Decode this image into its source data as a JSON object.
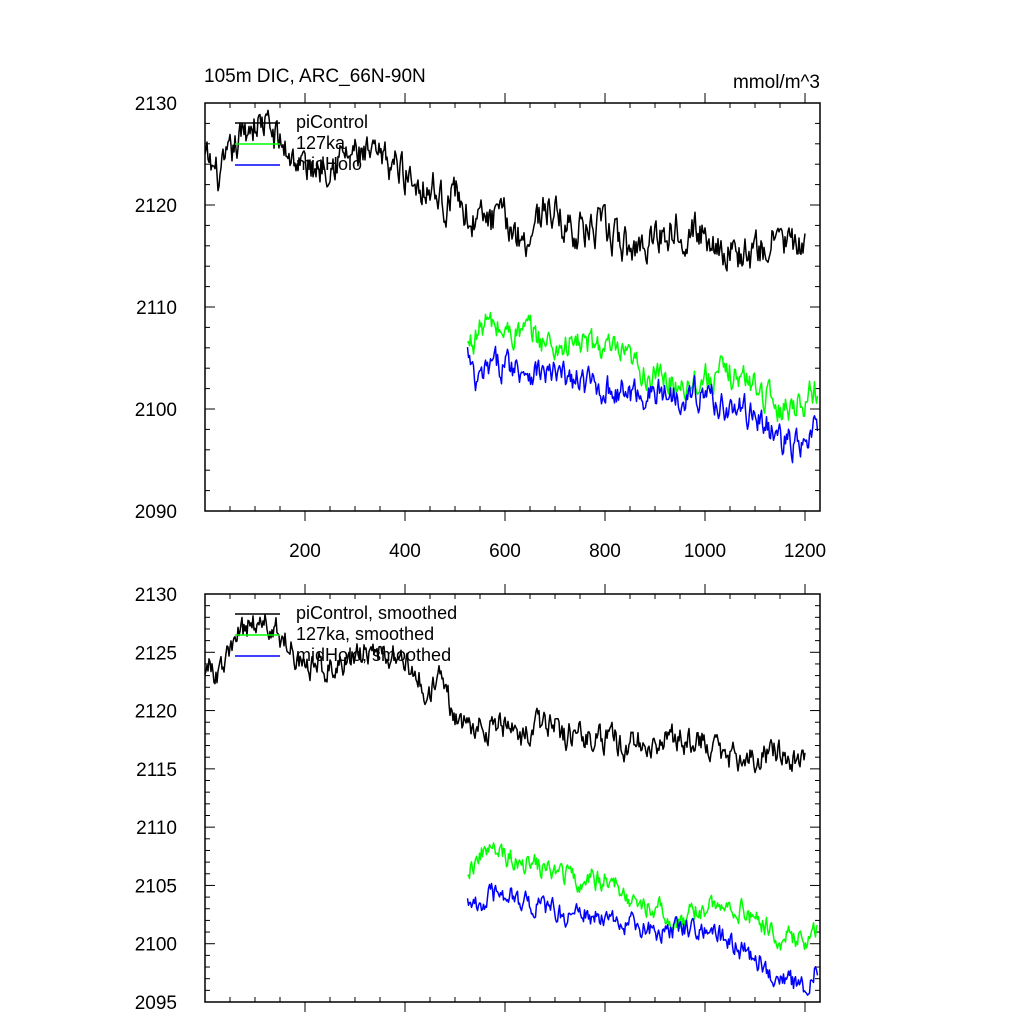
{
  "page": {
    "title": "105m DIC, ARC_66N-90N",
    "units": "mmol/m^3"
  },
  "colors": {
    "piControl": "#000000",
    "127ka": "#00ff00",
    "midHolo": "#0000ff"
  },
  "chart_data": [
    {
      "type": "line",
      "title": "105m DIC, ARC_66N-90N",
      "units_label": "mmol/m^3",
      "xlim": [
        0,
        1230
      ],
      "ylim": [
        2090,
        2130
      ],
      "x_ticks": [
        200,
        400,
        600,
        800,
        1000,
        1200
      ],
      "y_ticks": [
        2090,
        2100,
        2110,
        2120,
        2130
      ],
      "show_x_labels": true,
      "grid": false,
      "legend_position": "top-left",
      "series": [
        {
          "name": "piControl",
          "color": "#000000",
          "x_start": 0,
          "x_end": 1200,
          "anchors": [
            [
              0,
              2124.5
            ],
            [
              30,
              2122.5
            ],
            [
              60,
              2125.5
            ],
            [
              90,
              2128
            ],
            [
              120,
              2128
            ],
            [
              150,
              2126
            ],
            [
              180,
              2124.5
            ],
            [
              210,
              2123.5
            ],
            [
              250,
              2124.5
            ],
            [
              300,
              2125
            ],
            [
              330,
              2124.5
            ],
            [
              380,
              2124
            ],
            [
              420,
              2122.5
            ],
            [
              460,
              2121.5
            ],
            [
              480,
              2120
            ],
            [
              500,
              2121.5
            ],
            [
              530,
              2118.5
            ],
            [
              560,
              2118.5
            ],
            [
              600,
              2118.5
            ],
            [
              640,
              2116.5
            ],
            [
              680,
              2120
            ],
            [
              720,
              2118
            ],
            [
              760,
              2117.5
            ],
            [
              800,
              2117.5
            ],
            [
              850,
              2115.5
            ],
            [
              900,
              2117
            ],
            [
              950,
              2118
            ],
            [
              1000,
              2117
            ],
            [
              1050,
              2115.5
            ],
            [
              1100,
              2115
            ],
            [
              1150,
              2117
            ],
            [
              1200,
              2115
            ]
          ],
          "noise_amplitude": 1.5
        },
        {
          "name": "127ka",
          "color": "#00ff00",
          "x_start": 525,
          "x_end": 1225,
          "anchors": [
            [
              525,
              2106
            ],
            [
              560,
              2108.5
            ],
            [
              600,
              2107.5
            ],
            [
              650,
              2107.5
            ],
            [
              700,
              2106
            ],
            [
              750,
              2106.5
            ],
            [
              800,
              2106
            ],
            [
              850,
              2104.5
            ],
            [
              900,
              2103
            ],
            [
              950,
              2102.5
            ],
            [
              1000,
              2103
            ],
            [
              1050,
              2103.5
            ],
            [
              1100,
              2102.5
            ],
            [
              1150,
              2100
            ],
            [
              1200,
              2101
            ],
            [
              1225,
              2102
            ]
          ],
          "noise_amplitude": 1.2
        },
        {
          "name": "midHolo",
          "color": "#0000ff",
          "x_start": 525,
          "x_end": 1225,
          "anchors": [
            [
              525,
              2105.5
            ],
            [
              540,
              2102
            ],
            [
              570,
              2104
            ],
            [
              600,
              2104.5
            ],
            [
              640,
              2104
            ],
            [
              680,
              2103.5
            ],
            [
              720,
              2103
            ],
            [
              760,
              2102.5
            ],
            [
              800,
              2102
            ],
            [
              850,
              2101.5
            ],
            [
              900,
              2101.5
            ],
            [
              950,
              2101.5
            ],
            [
              1000,
              2101.5
            ],
            [
              1050,
              2100
            ],
            [
              1100,
              2099.5
            ],
            [
              1150,
              2097
            ],
            [
              1200,
              2096
            ],
            [
              1225,
              2098.5
            ]
          ],
          "noise_amplitude": 1.2
        }
      ]
    },
    {
      "type": "line",
      "title": "",
      "xlim": [
        0,
        1230
      ],
      "ylim": [
        2095,
        2130
      ],
      "x_ticks": [
        200,
        400,
        600,
        800,
        1000,
        1200
      ],
      "y_ticks": [
        2095,
        2100,
        2105,
        2110,
        2115,
        2120,
        2125,
        2130
      ],
      "show_x_labels": false,
      "grid": false,
      "legend_position": "top-left",
      "series": [
        {
          "name": "piControl, smoothed",
          "color": "#000000",
          "x_start": 0,
          "x_end": 1200,
          "anchors": [
            [
              0,
              2124
            ],
            [
              30,
              2123
            ],
            [
              60,
              2126
            ],
            [
              90,
              2127.5
            ],
            [
              120,
              2127.5
            ],
            [
              150,
              2126.5
            ],
            [
              180,
              2125
            ],
            [
              210,
              2123.5
            ],
            [
              250,
              2124
            ],
            [
              300,
              2124.5
            ],
            [
              330,
              2125
            ],
            [
              380,
              2124.5
            ],
            [
              420,
              2123.5
            ],
            [
              450,
              2121
            ],
            [
              470,
              2123
            ],
            [
              500,
              2119.5
            ],
            [
              530,
              2119
            ],
            [
              560,
              2118.5
            ],
            [
              600,
              2118.5
            ],
            [
              640,
              2117.5
            ],
            [
              680,
              2119
            ],
            [
              720,
              2118
            ],
            [
              760,
              2118
            ],
            [
              800,
              2117.5
            ],
            [
              850,
              2117
            ],
            [
              900,
              2117.5
            ],
            [
              950,
              2117.5
            ],
            [
              1000,
              2117.5
            ],
            [
              1050,
              2116
            ],
            [
              1100,
              2116
            ],
            [
              1150,
              2116.5
            ],
            [
              1200,
              2115.5
            ]
          ],
          "noise_amplitude": 1.0
        },
        {
          "name": "127ka, smoothed",
          "color": "#00ff00",
          "x_start": 525,
          "x_end": 1225,
          "anchors": [
            [
              525,
              2106.5
            ],
            [
              560,
              2108
            ],
            [
              600,
              2107.5
            ],
            [
              650,
              2107
            ],
            [
              700,
              2106
            ],
            [
              750,
              2105.5
            ],
            [
              800,
              2105.5
            ],
            [
              850,
              2104
            ],
            [
              900,
              2103
            ],
            [
              950,
              2102
            ],
            [
              1000,
              2103
            ],
            [
              1050,
              2103.5
            ],
            [
              1100,
              2102
            ],
            [
              1150,
              2100.5
            ],
            [
              1200,
              2100.5
            ],
            [
              1225,
              2101.5
            ]
          ],
          "noise_amplitude": 0.8
        },
        {
          "name": "midHolo, smoothed",
          "color": "#0000ff",
          "x_start": 525,
          "x_end": 1225,
          "anchors": [
            [
              525,
              2104.5
            ],
            [
              540,
              2103
            ],
            [
              570,
              2104
            ],
            [
              600,
              2104.5
            ],
            [
              640,
              2103.5
            ],
            [
              680,
              2103
            ],
            [
              720,
              2102.5
            ],
            [
              760,
              2102.5
            ],
            [
              800,
              2102
            ],
            [
              850,
              2101.5
            ],
            [
              900,
              2101
            ],
            [
              950,
              2101.5
            ],
            [
              1000,
              2101.5
            ],
            [
              1050,
              2100
            ],
            [
              1100,
              2099
            ],
            [
              1150,
              2097
            ],
            [
              1200,
              2096
            ],
            [
              1225,
              2098
            ]
          ],
          "noise_amplitude": 0.8
        }
      ]
    }
  ]
}
